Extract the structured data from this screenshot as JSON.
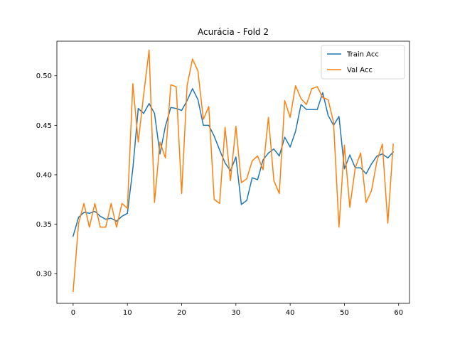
{
  "chart_data": {
    "type": "line",
    "title": "Acurácia - Fold 2",
    "xlabel": "",
    "ylabel": "",
    "xlim": [
      -3,
      62
    ],
    "ylim": [
      0.27,
      0.535
    ],
    "xticks": [
      0,
      10,
      20,
      30,
      40,
      50,
      60
    ],
    "yticks": [
      0.3,
      0.35,
      0.4,
      0.45,
      0.5
    ],
    "ytick_labels": [
      "0.30",
      "0.35",
      "0.40",
      "0.45",
      "0.50"
    ],
    "grid": false,
    "legend_position": "top-right",
    "x": [
      0,
      1,
      2,
      3,
      4,
      5,
      6,
      7,
      8,
      9,
      10,
      11,
      12,
      13,
      14,
      15,
      16,
      17,
      18,
      19,
      20,
      21,
      22,
      23,
      24,
      25,
      26,
      27,
      28,
      29,
      30,
      31,
      32,
      33,
      34,
      35,
      36,
      37,
      38,
      39,
      40,
      41,
      42,
      43,
      44,
      45,
      46,
      47,
      48,
      49,
      50,
      51,
      52,
      53,
      54,
      55,
      56,
      57,
      58,
      59
    ],
    "series": [
      {
        "name": "Train Acc",
        "color": "#1f77b4",
        "values": [
          0.338,
          0.357,
          0.362,
          0.361,
          0.363,
          0.358,
          0.355,
          0.356,
          0.353,
          0.358,
          0.361,
          0.406,
          0.467,
          0.462,
          0.472,
          0.462,
          0.421,
          0.449,
          0.468,
          0.467,
          0.465,
          0.475,
          0.487,
          0.476,
          0.45,
          0.45,
          0.439,
          0.425,
          0.412,
          0.404,
          0.418,
          0.37,
          0.374,
          0.397,
          0.395,
          0.415,
          0.422,
          0.426,
          0.419,
          0.438,
          0.428,
          0.444,
          0.471,
          0.466,
          0.466,
          0.466,
          0.483,
          0.46,
          0.45,
          0.459,
          0.406,
          0.42,
          0.407,
          0.407,
          0.401,
          0.411,
          0.419,
          0.421,
          0.417,
          0.423
        ]
      },
      {
        "name": "Val Acc",
        "color": "#ff7f0e",
        "values": [
          0.282,
          0.351,
          0.371,
          0.347,
          0.371,
          0.347,
          0.347,
          0.371,
          0.347,
          0.371,
          0.366,
          0.492,
          0.433,
          0.481,
          0.526,
          0.372,
          0.433,
          0.417,
          0.491,
          0.489,
          0.381,
          0.49,
          0.517,
          0.505,
          0.456,
          0.469,
          0.375,
          0.371,
          0.448,
          0.394,
          0.449,
          0.392,
          0.396,
          0.414,
          0.419,
          0.405,
          0.458,
          0.394,
          0.381,
          0.475,
          0.458,
          0.49,
          0.477,
          0.471,
          0.487,
          0.489,
          0.478,
          0.476,
          0.453,
          0.347,
          0.43,
          0.367,
          0.407,
          0.422,
          0.372,
          0.384,
          0.414,
          0.431,
          0.351,
          0.431
        ]
      }
    ]
  }
}
